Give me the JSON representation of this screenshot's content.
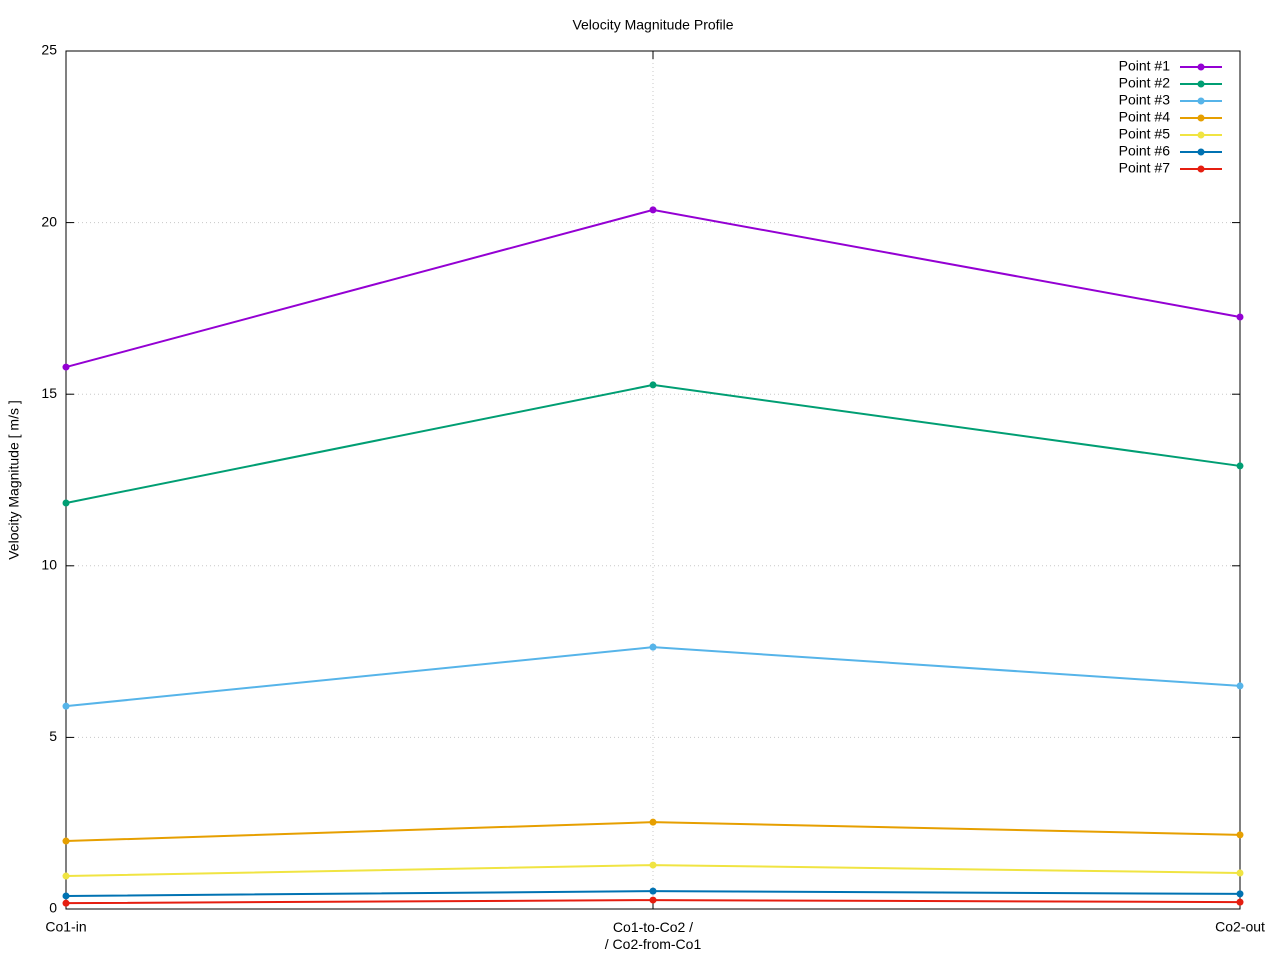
{
  "chart_data": {
    "type": "line",
    "title": "Velocity Magnitude Profile",
    "y_label": "Velocity Magnitude [ m/s ]",
    "categories": [
      "Co1-in",
      "Co1-to-Co2 /\n/ Co2-from-Co1",
      "Co2-out"
    ],
    "series": [
      {
        "name": "Point #1",
        "color": "#9400d3",
        "values": [
          15.79,
          20.37,
          17.25
        ]
      },
      {
        "name": "Point #2",
        "color": "#009e73",
        "values": [
          11.83,
          15.27,
          12.91
        ]
      },
      {
        "name": "Point #3",
        "color": "#56b4e9",
        "values": [
          5.91,
          7.63,
          6.5
        ]
      },
      {
        "name": "Point #4",
        "color": "#e69f00",
        "values": [
          1.98,
          2.53,
          2.16
        ]
      },
      {
        "name": "Point #5",
        "color": "#f0e442",
        "values": [
          0.96,
          1.28,
          1.05
        ]
      },
      {
        "name": "Point #6",
        "color": "#0072b2",
        "values": [
          0.38,
          0.52,
          0.44
        ]
      },
      {
        "name": "Point #7",
        "color": "#e51e10",
        "values": [
          0.17,
          0.26,
          0.2
        ]
      }
    ],
    "ylim": [
      0,
      25
    ],
    "yticks": [
      0,
      5,
      10,
      15,
      20,
      25
    ],
    "grid": true,
    "legend": "top-right"
  }
}
